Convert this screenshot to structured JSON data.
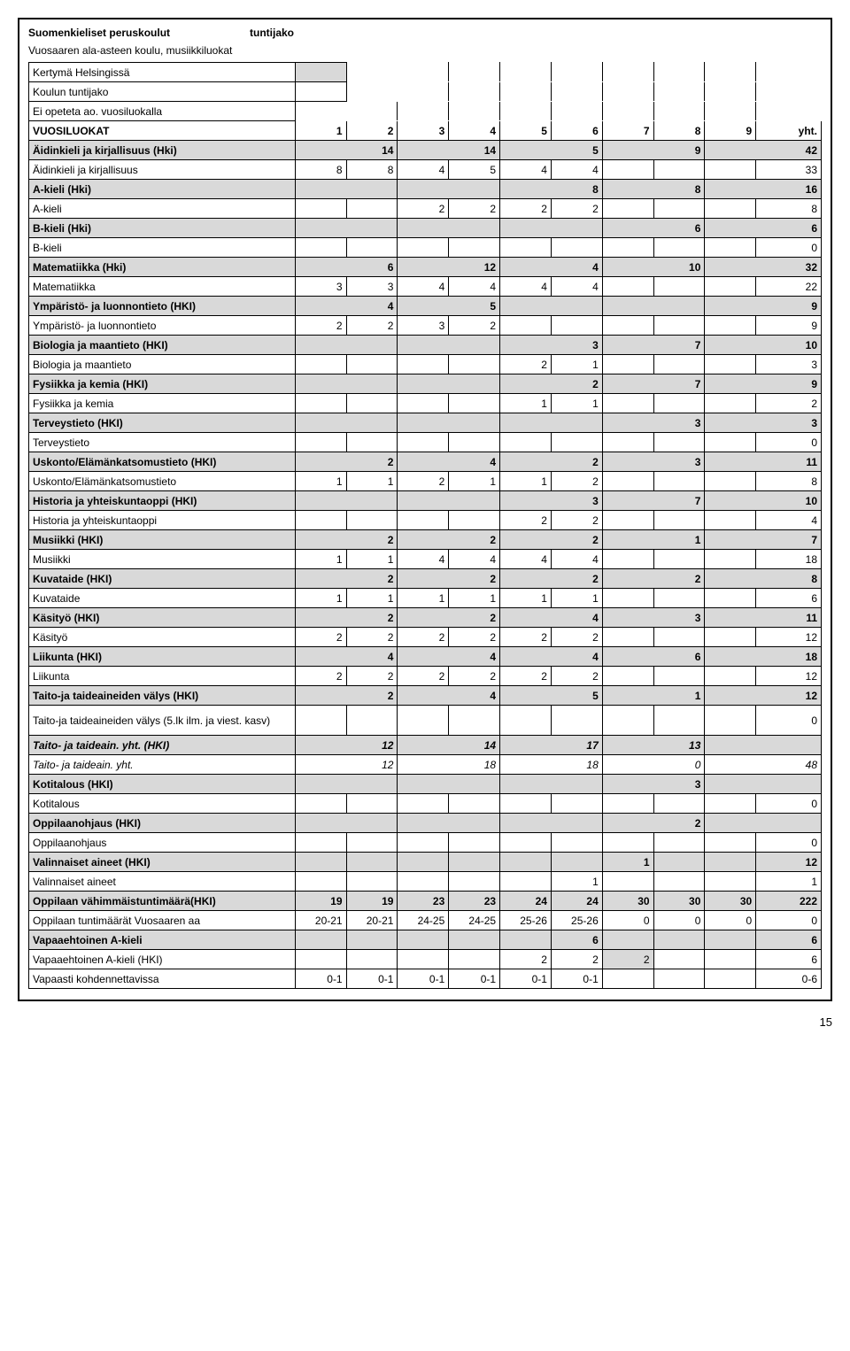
{
  "header": {
    "title_left": "Suomenkieliset peruskoulut",
    "title_right": "tuntijako",
    "subtitle": "Vuosaaren ala-asteen koulu, musiikkiluokat"
  },
  "legend": {
    "kertyma": "Kertymä Helsingissä",
    "koulun": "Koulun tuntijako",
    "eiopeteta": "Ei opeteta ao. vuosiluokalla"
  },
  "col_header": {
    "label": "VUOSILUOKAT",
    "c1": "1",
    "c2": "2",
    "c3": "3",
    "c4": "4",
    "c5": "5",
    "c6": "6",
    "c7": "7",
    "c8": "8",
    "c9": "9",
    "c10": "yht."
  },
  "rows": [
    {
      "id": "r0",
      "label": "Äidinkieli ja kirjallisuus (Hki)",
      "cells": [
        "",
        "14",
        "",
        "14",
        "",
        "5",
        "",
        "9",
        "",
        "42"
      ],
      "shaded": true,
      "bold": true,
      "merge": [
        0,
        2,
        4,
        6,
        8
      ]
    },
    {
      "id": "r1",
      "label": "Äidinkieli ja kirjallisuus",
      "cells": [
        "8",
        "8",
        "4",
        "5",
        "4",
        "4",
        "",
        "",
        "",
        "33"
      ]
    },
    {
      "id": "r2",
      "label": "A-kieli (Hki)",
      "cells": [
        "",
        "",
        "",
        "",
        "",
        "8",
        "",
        "8",
        "",
        "16"
      ],
      "shaded": true,
      "bold": true,
      "merge": [
        0,
        2,
        4,
        6,
        8
      ]
    },
    {
      "id": "r3",
      "label": "A-kieli",
      "cells": [
        "",
        "",
        "2",
        "2",
        "2",
        "2",
        "",
        "",
        "",
        "8"
      ]
    },
    {
      "id": "r4",
      "label": "B-kieli (Hki)",
      "cells": [
        "",
        "",
        "",
        "",
        "",
        "",
        "",
        "6",
        "",
        "6"
      ],
      "shaded": true,
      "bold": true,
      "merge": [
        0,
        2,
        4,
        6,
        8
      ]
    },
    {
      "id": "r5",
      "label": "B-kieli",
      "cells": [
        "",
        "",
        "",
        "",
        "",
        "",
        "",
        "",
        "",
        "0"
      ]
    },
    {
      "id": "r6",
      "label": "Matematiikka (Hki)",
      "cells": [
        "",
        "6",
        "",
        "12",
        "",
        "4",
        "",
        "10",
        "",
        "32"
      ],
      "shaded": true,
      "bold": true,
      "merge": [
        0,
        2,
        4,
        6,
        8
      ]
    },
    {
      "id": "r7",
      "label": "Matematiikka",
      "cells": [
        "3",
        "3",
        "4",
        "4",
        "4",
        "4",
        "",
        "",
        "",
        "22"
      ]
    },
    {
      "id": "r8",
      "label": "Ympäristö- ja luonnontieto (HKI)",
      "cells": [
        "",
        "4",
        "",
        "5",
        "",
        "",
        "",
        "",
        "",
        "9"
      ],
      "shaded": true,
      "bold": true,
      "merge": [
        0,
        2,
        4,
        6,
        8
      ],
      "blank789": true
    },
    {
      "id": "r9",
      "label": "Ympäristö- ja luonnontieto",
      "cells": [
        "2",
        "2",
        "3",
        "2",
        "",
        "",
        "",
        "",
        "",
        "9"
      ],
      "blank789": true
    },
    {
      "id": "r10",
      "label": "Biologia ja maantieto (HKI)",
      "cells": [
        "",
        "",
        "",
        "",
        "",
        "3",
        "",
        "7",
        "",
        "10"
      ],
      "shaded": true,
      "bold": true,
      "merge": [
        0,
        2,
        4,
        6,
        8
      ],
      "blank1234": true
    },
    {
      "id": "r11",
      "label": "Biologia ja maantieto",
      "cells": [
        "",
        "",
        "",
        "",
        "2",
        "1",
        "",
        "",
        "",
        "3"
      ],
      "blank1234": true
    },
    {
      "id": "r12",
      "label": "Fysiikka ja kemia (HKI)",
      "cells": [
        "",
        "",
        "",
        "",
        "",
        "2",
        "",
        "7",
        "",
        "9"
      ],
      "shaded": true,
      "bold": true,
      "merge": [
        0,
        2,
        4,
        6,
        8
      ],
      "blank1234": true
    },
    {
      "id": "r13",
      "label": "Fysiikka ja kemia",
      "cells": [
        "",
        "",
        "",
        "",
        "1",
        "1",
        "",
        "",
        "",
        "2"
      ],
      "blank1234": true
    },
    {
      "id": "r14",
      "label": "Terveystieto (HKI)",
      "cells": [
        "",
        "",
        "",
        "",
        "",
        "",
        "",
        "3",
        "",
        "3"
      ],
      "shaded": true,
      "bold": true,
      "merge": [
        0,
        2,
        4,
        6,
        8
      ]
    },
    {
      "id": "r15",
      "label": "Terveystieto",
      "cells": [
        "",
        "",
        "",
        "",
        "",
        "",
        "",
        "",
        "",
        "0"
      ]
    },
    {
      "id": "r16",
      "label": "Uskonto/Elämänkatsomustieto (HKI)",
      "cells": [
        "",
        "2",
        "",
        "4",
        "",
        "2",
        "",
        "3",
        "",
        "11"
      ],
      "shaded": true,
      "bold": true,
      "merge": [
        0,
        2,
        4,
        6,
        8
      ]
    },
    {
      "id": "r17",
      "label": "Uskonto/Elämänkatsomustieto",
      "cells": [
        "1",
        "1",
        "2",
        "1",
        "1",
        "2",
        "",
        "",
        "",
        "8"
      ]
    },
    {
      "id": "r18",
      "label": "Historia ja yhteiskuntaoppi (HKI)",
      "cells": [
        "",
        "",
        "",
        "",
        "",
        "3",
        "",
        "7",
        "",
        "10"
      ],
      "shaded": true,
      "bold": true,
      "merge": [
        0,
        2,
        4,
        6,
        8
      ]
    },
    {
      "id": "r19",
      "label": "Historia ja yhteiskuntaoppi",
      "cells": [
        "",
        "",
        "",
        "",
        "2",
        "2",
        "",
        "",
        "",
        "4"
      ]
    },
    {
      "id": "r20",
      "label": "Musiikki (HKI)",
      "cells": [
        "",
        "2",
        "",
        "2",
        "",
        "2",
        "",
        "1",
        "",
        "7"
      ],
      "shaded": true,
      "bold": true,
      "merge": [
        0,
        2,
        4,
        6,
        8
      ]
    },
    {
      "id": "r21",
      "label": "Musiikki",
      "cells": [
        "1",
        "1",
        "4",
        "4",
        "4",
        "4",
        "",
        "",
        "",
        "18"
      ]
    },
    {
      "id": "r22",
      "label": "Kuvataide (HKI)",
      "cells": [
        "",
        "2",
        "",
        "2",
        "",
        "2",
        "",
        "2",
        "",
        "8"
      ],
      "shaded": true,
      "bold": true,
      "merge": [
        0,
        2,
        4,
        6,
        8
      ]
    },
    {
      "id": "r23",
      "label": "Kuvataide",
      "cells": [
        "1",
        "1",
        "1",
        "1",
        "1",
        "1",
        "",
        "",
        "",
        "6"
      ]
    },
    {
      "id": "r24",
      "label": "Käsityö (HKI)",
      "cells": [
        "",
        "2",
        "",
        "2",
        "",
        "4",
        "",
        "3",
        "",
        "11"
      ],
      "shaded": true,
      "bold": true,
      "merge": [
        0,
        2,
        4,
        6,
        8
      ]
    },
    {
      "id": "r25",
      "label": "Käsityö",
      "cells": [
        "2",
        "2",
        "2",
        "2",
        "2",
        "2",
        "",
        "",
        "",
        "12"
      ]
    },
    {
      "id": "r26",
      "label": "Liikunta (HKI)",
      "cells": [
        "",
        "4",
        "",
        "4",
        "",
        "4",
        "",
        "6",
        "",
        "18"
      ],
      "shaded": true,
      "bold": true,
      "merge": [
        0,
        2,
        4,
        6,
        8
      ]
    },
    {
      "id": "r27",
      "label": "Liikunta",
      "cells": [
        "2",
        "2",
        "2",
        "2",
        "2",
        "2",
        "",
        "",
        "",
        "12"
      ]
    },
    {
      "id": "r28",
      "label": "Taito-ja taideaineiden välys (HKI)",
      "cells": [
        "",
        "2",
        "",
        "4",
        "",
        "5",
        "",
        "1",
        "",
        "12"
      ],
      "shaded": true,
      "bold": true,
      "merge": [
        0,
        2,
        4,
        6,
        8
      ]
    },
    {
      "id": "r29",
      "label": "Taito-ja taideaineiden välys (5.lk ilm. ja viest. kasv)",
      "cells": [
        "",
        "",
        "",
        "",
        "",
        "",
        "",
        "",
        "",
        "0"
      ],
      "tall": true
    },
    {
      "id": "r30",
      "label": "Taito- ja taideain. yht. (HKI)",
      "cells": [
        "",
        "12",
        "",
        "14",
        "",
        "17",
        "",
        "13",
        "",
        ""
      ],
      "shaded": true,
      "bold": true,
      "italic": true,
      "merge": [
        0,
        2,
        4,
        6,
        8
      ]
    },
    {
      "id": "r31",
      "label": "Taito- ja taideain. yht.",
      "cells": [
        "",
        "12",
        "",
        "18",
        "",
        "18",
        "",
        "0",
        "",
        "48"
      ],
      "italic": true,
      "merge": [
        0,
        2,
        4,
        6,
        8
      ]
    },
    {
      "id": "r32",
      "label": "Kotitalous (HKI)",
      "cells": [
        "",
        "",
        "",
        "",
        "",
        "",
        "",
        "3",
        "",
        ""
      ],
      "shaded": true,
      "bold": true,
      "merge": [
        0,
        2,
        4,
        6,
        8
      ]
    },
    {
      "id": "r33",
      "label": "Kotitalous",
      "cells": [
        "",
        "",
        "",
        "",
        "",
        "",
        "",
        "",
        "",
        "0"
      ]
    },
    {
      "id": "r34",
      "label": "Oppilaanohjaus (HKI)",
      "cells": [
        "",
        "",
        "",
        "",
        "",
        "",
        "",
        "2",
        "",
        ""
      ],
      "shaded": true,
      "bold": true,
      "merge": [
        0,
        2,
        4,
        6,
        8
      ]
    },
    {
      "id": "r35",
      "label": "Oppilaanohjaus",
      "cells": [
        "",
        "",
        "",
        "",
        "",
        "",
        "",
        "",
        "",
        "0"
      ]
    },
    {
      "id": "r36",
      "label": "Valinnaiset aineet (HKI)",
      "cells": [
        "",
        "",
        "",
        "",
        "",
        "",
        "1",
        "",
        "",
        "12"
      ],
      "shaded": true,
      "bold": true
    },
    {
      "id": "r37",
      "label": "Valinnaiset aineet",
      "cells": [
        "",
        "",
        "",
        "",
        "",
        "1",
        "",
        "",
        "",
        "1"
      ]
    },
    {
      "id": "r38",
      "label": "Oppilaan vähimmäistuntimäärä(HKI)",
      "cells": [
        "19",
        "19",
        "23",
        "23",
        "24",
        "24",
        "30",
        "30",
        "30",
        "222"
      ],
      "shaded": true,
      "bold": true
    },
    {
      "id": "r39",
      "label": "Oppilaan tuntimäärät Vuosaaren aa",
      "cells": [
        "20-21",
        "20-21",
        "24-25",
        "24-25",
        "25-26",
        "25-26",
        "0",
        "0",
        "0",
        "0"
      ]
    },
    {
      "id": "r40",
      "label": "Vapaaehtoinen A-kieli",
      "cells": [
        "",
        "",
        "",
        "",
        "",
        "6",
        "",
        "",
        "",
        "6"
      ],
      "shaded": true,
      "bold": true
    },
    {
      "id": "r41",
      "label": "Vapaaehtoinen A-kieli (HKI)",
      "cells": [
        "",
        "",
        "",
        "",
        "2",
        "2",
        "2",
        "",
        "",
        "6"
      ],
      "shadec6": true
    },
    {
      "id": "r42",
      "label": "Vapaasti kohdennettavissa",
      "cells": [
        "0-1",
        "0-1",
        "0-1",
        "0-1",
        "0-1",
        "0-1",
        "",
        "",
        "",
        "0-6"
      ]
    }
  ],
  "pagenum": "15"
}
